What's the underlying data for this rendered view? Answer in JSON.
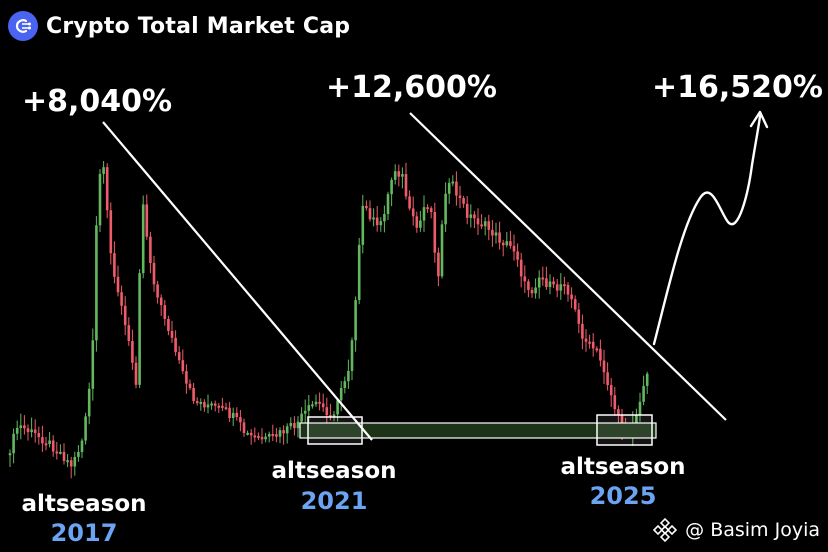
{
  "header": {
    "title": "Crypto Total Market Cap",
    "logo_icon": "crypto-market-cap-logo-icon"
  },
  "colors": {
    "up": "#63b85f",
    "down": "#f05b6b",
    "zone_fill": "#1c3318",
    "year": "#6aa4f2",
    "logo_bg": "#4a63f0"
  },
  "chart_data": {
    "type": "candlestick",
    "title": "Crypto Total Market Cap",
    "grid": false,
    "gains": [
      {
        "label": "+8,040%"
      },
      {
        "label": "+12,600%"
      },
      {
        "label": "+16,520%"
      }
    ],
    "seasons": [
      {
        "label": "altseason",
        "year": "2017"
      },
      {
        "label": "altseason",
        "year": "2021"
      },
      {
        "label": "altseason",
        "year": "2025"
      }
    ]
  },
  "watermark": {
    "text": "@ Basim Joyia",
    "icon": "binance-logo-icon"
  }
}
